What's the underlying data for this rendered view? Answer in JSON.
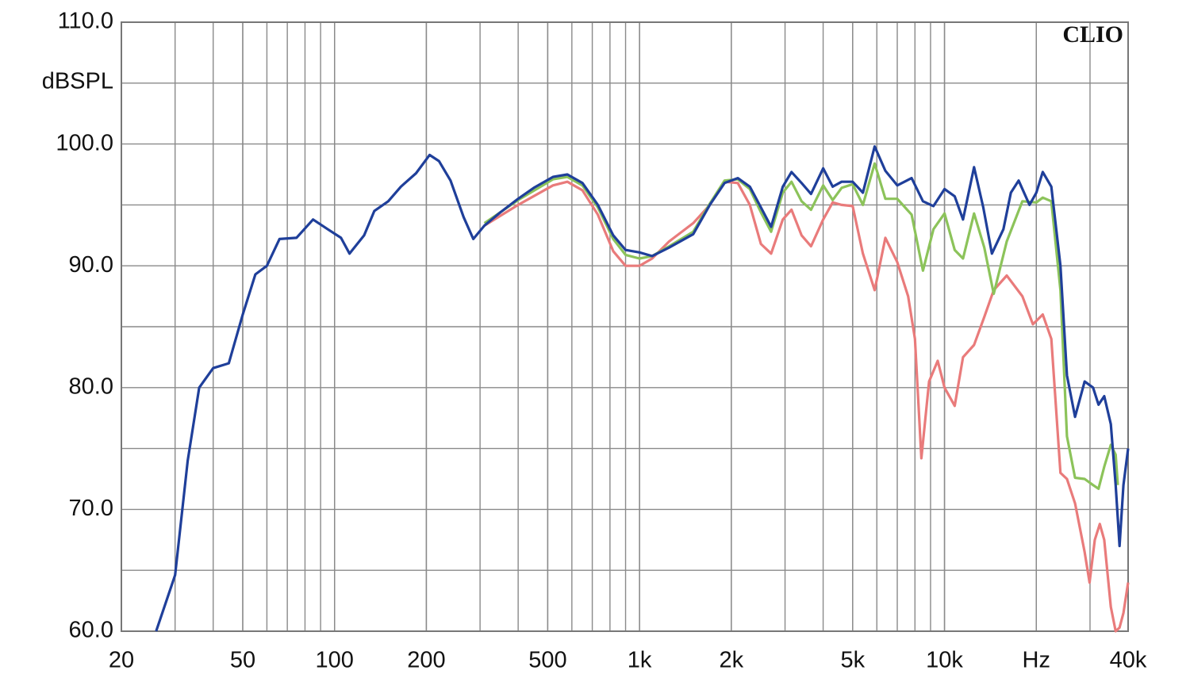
{
  "chart_data": {
    "type": "line",
    "title": "CLIO",
    "y_label": "dBSPL",
    "xscale": "log",
    "grid": true,
    "xlim": [
      20,
      40000
    ],
    "ylim": [
      60,
      110
    ],
    "xticks": [
      20,
      50,
      100,
      200,
      500,
      {
        "value": 1000,
        "label": "1k"
      },
      {
        "value": 2000,
        "label": "2k"
      },
      {
        "value": 5000,
        "label": "5k"
      },
      {
        "value": 10000,
        "label": "10k"
      },
      {
        "value": 20000,
        "label": "Hz"
      },
      {
        "value": 40000,
        "label": "40k"
      }
    ],
    "yticks": [
      {
        "value": 60,
        "label": "60.0"
      },
      {
        "value": 70,
        "label": "70.0"
      },
      {
        "value": 80,
        "label": "80.0"
      },
      {
        "value": 90,
        "label": "90.0"
      },
      {
        "value": 100,
        "label": "100.0"
      },
      {
        "value": 110,
        "label": "110.0"
      }
    ],
    "series": [
      {
        "color": "#e97b7b",
        "x": [
          310,
          400,
          520,
          580,
          650,
          730,
          820,
          900,
          1000,
          1100,
          1250,
          1500,
          1700,
          1900,
          2100,
          2300,
          2500,
          2700,
          2950,
          3150,
          3400,
          3650,
          4000,
          4300,
          4600,
          5000,
          5400,
          5900,
          6400,
          7000,
          7600,
          8000,
          8400,
          8900,
          9500,
          10000,
          10800,
          11500,
          12500,
          13500,
          14500,
          16000,
          18000,
          19500,
          21000,
          22400,
          24000,
          25200,
          26800,
          28800,
          29900,
          31100,
          32300,
          33400,
          35100,
          36400,
          37500,
          38600,
          40000
        ],
        "values": [
          93.3,
          95,
          96.6,
          96.9,
          96.2,
          94.2,
          91.2,
          90,
          90,
          90.6,
          92,
          93.5,
          95,
          96.9,
          96.8,
          95,
          91.8,
          91,
          93.8,
          94.6,
          92.5,
          91.6,
          93.8,
          95.2,
          95,
          94.9,
          91,
          88,
          92.3,
          90.3,
          87.5,
          84,
          74.2,
          80.5,
          82.2,
          80,
          78.5,
          82.5,
          83.5,
          85.8,
          88,
          89.2,
          87.5,
          85.2,
          86,
          84,
          73,
          72.5,
          70.5,
          66.5,
          64,
          67.5,
          68.8,
          67.5,
          62,
          60,
          60.3,
          61.5,
          64
        ]
      },
      {
        "color": "#8cc35a",
        "x": [
          310,
          400,
          520,
          580,
          650,
          730,
          820,
          900,
          1000,
          1100,
          1250,
          1500,
          1700,
          1900,
          2100,
          2300,
          2500,
          2700,
          2950,
          3150,
          3400,
          3650,
          4000,
          4300,
          4600,
          5000,
          5400,
          5900,
          6400,
          7000,
          7800,
          8500,
          9200,
          10000,
          10800,
          11500,
          12500,
          13500,
          14500,
          16000,
          18000,
          20000,
          21000,
          22400,
          24000,
          25200,
          26800,
          28800,
          30700,
          32000,
          33400,
          35100,
          36400,
          37000
        ],
        "values": [
          93.5,
          95.4,
          97.1,
          97.3,
          96.6,
          94.8,
          92.2,
          90.9,
          90.6,
          90.8,
          91.6,
          92.8,
          95.1,
          97,
          97.1,
          96.3,
          94.4,
          92.8,
          96,
          96.9,
          95.3,
          94.6,
          96.6,
          95.4,
          96.4,
          96.7,
          95,
          98.4,
          95.5,
          95.5,
          94.2,
          89.6,
          93,
          94.3,
          91.3,
          90.6,
          94.3,
          91.5,
          87.7,
          92,
          95.3,
          95.2,
          95.6,
          95.3,
          88,
          76,
          72.6,
          72.5,
          72,
          71.7,
          73.5,
          75.3,
          74.5,
          72
        ]
      },
      {
        "color": "#1f3f9a",
        "x": [
          26,
          30,
          33,
          36,
          40,
          45,
          50,
          55,
          60,
          66,
          75,
          85,
          95,
          105,
          112,
          125,
          135,
          150,
          165,
          185,
          205,
          220,
          240,
          265,
          285,
          310,
          350,
          400,
          450,
          520,
          580,
          650,
          730,
          820,
          900,
          1000,
          1100,
          1250,
          1500,
          1700,
          1900,
          2100,
          2300,
          2500,
          2700,
          2950,
          3150,
          3400,
          3650,
          4000,
          4300,
          4600,
          5000,
          5400,
          5900,
          6400,
          7000,
          7800,
          8500,
          9200,
          10000,
          10800,
          11500,
          12500,
          13400,
          14300,
          15600,
          16500,
          17500,
          19000,
          20000,
          21000,
          22400,
          24000,
          25200,
          26800,
          28800,
          30700,
          32000,
          33400,
          35100,
          36400,
          37500,
          38600,
          40000
        ],
        "values": [
          60,
          64.6,
          74,
          80,
          81.6,
          82,
          86,
          89.3,
          90,
          92.2,
          92.3,
          93.8,
          93,
          92.3,
          91,
          92.5,
          94.5,
          95.3,
          96.5,
          97.6,
          99.1,
          98.6,
          97,
          94,
          92.2,
          93.3,
          94.4,
          95.5,
          96.4,
          97.3,
          97.5,
          96.8,
          95,
          92.5,
          91.3,
          91.1,
          90.8,
          91.5,
          92.6,
          95,
          96.8,
          97.2,
          96.5,
          94.8,
          93.2,
          96.5,
          97.7,
          96.8,
          95.9,
          98,
          96.5,
          96.9,
          96.9,
          96,
          99.8,
          97.8,
          96.6,
          97.2,
          95.3,
          94.9,
          96.3,
          95.7,
          93.8,
          98.1,
          94.8,
          91,
          93,
          96,
          97,
          95,
          96,
          97.7,
          96.5,
          90,
          81,
          77.6,
          80.5,
          80,
          78.6,
          79.3,
          77,
          72,
          67,
          72,
          75
        ]
      }
    ]
  }
}
